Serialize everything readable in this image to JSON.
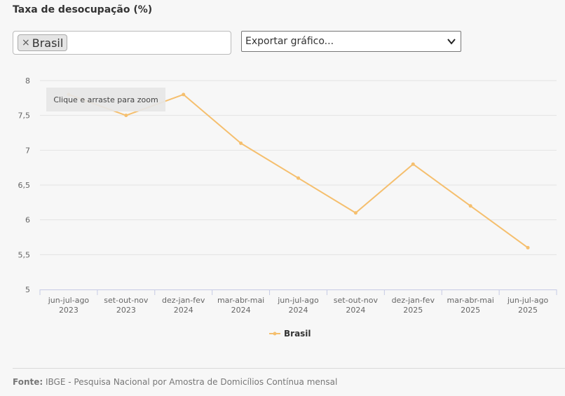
{
  "title": "Taxa de desocupação (%)",
  "filter": {
    "tag_label": "Brasil",
    "remove_glyph": "×"
  },
  "export_select": {
    "selected": "Exportar gráfico..."
  },
  "zoom_hint": "Clique e arraste para zoom",
  "source": {
    "label": "Fonte:",
    "text": "IBGE - Pesquisa Nacional por Amostra de Domicílios Contínua mensal"
  },
  "colors": {
    "series": "#f5bf6e",
    "grid": "#e3e3e3",
    "axis": "#c6cbe6"
  },
  "chart_data": {
    "type": "line",
    "categories": [
      [
        "jun-jul-ago",
        "2023"
      ],
      [
        "set-out-nov",
        "2023"
      ],
      [
        "dez-jan-fev",
        "2024"
      ],
      [
        "mar-abr-mai",
        "2024"
      ],
      [
        "jun-jul-ago",
        "2024"
      ],
      [
        "set-out-nov",
        "2024"
      ],
      [
        "dez-jan-fev",
        "2025"
      ],
      [
        "mar-abr-mai",
        "2025"
      ],
      [
        "jun-jul-ago",
        "2025"
      ]
    ],
    "series": [
      {
        "name": "Brasil",
        "values": [
          7.8,
          7.5,
          7.8,
          7.1,
          6.6,
          6.1,
          6.8,
          6.2,
          5.6
        ]
      }
    ],
    "y_ticks": [
      "5",
      "5,5",
      "6",
      "6,5",
      "7",
      "7,5",
      "8"
    ],
    "ylim": [
      5,
      8
    ],
    "grid": true,
    "legend_position": "bottom-center"
  }
}
